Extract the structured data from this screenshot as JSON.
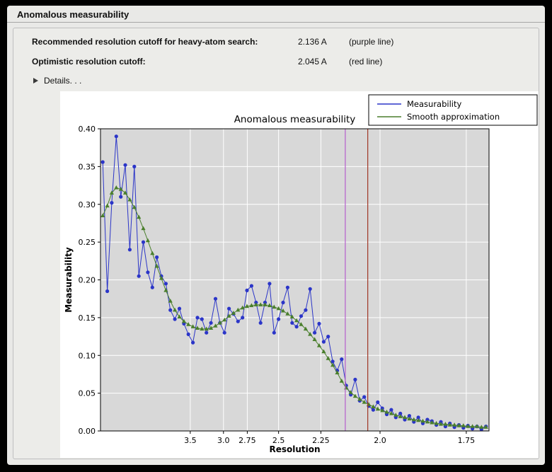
{
  "header": {
    "title": "Anomalous measurability"
  },
  "info": {
    "rows": [
      {
        "label": "Recommended resolution cutoff for heavy-atom search:",
        "value": "2.136 A",
        "note": "(purple line)"
      },
      {
        "label": "Optimistic resolution cutoff:",
        "value": "2.045 A",
        "note": "(red line)"
      }
    ]
  },
  "details": {
    "label": "Details. . .",
    "icon": "right-pointing-disclosure-triangle"
  },
  "chart_data": {
    "type": "line",
    "title": "Anomalous measurability",
    "xlabel": "Resolution",
    "ylabel": "Measurability",
    "x_scale_note": "x axis linear in 1/d^2; resolution in Angstrom decreases to the right",
    "x_domain_inv_d2": [
      0.002,
      0.3467
    ],
    "ylim": [
      0.0,
      0.4
    ],
    "y_ticks": [
      0.0,
      0.05,
      0.1,
      0.15,
      0.2,
      0.25,
      0.3,
      0.35,
      0.4
    ],
    "x_ticks": [
      {
        "label": "3.5",
        "d": 3.5
      },
      {
        "label": "3.0",
        "d": 3.0
      },
      {
        "label": "2.75",
        "d": 2.75
      },
      {
        "label": "2.5",
        "d": 2.5
      },
      {
        "label": "2.25",
        "d": 2.25
      },
      {
        "label": "2.0",
        "d": 2.0
      },
      {
        "label": "1.75",
        "d": 1.75
      }
    ],
    "grid": true,
    "plot_bg": "#d8d8d8",
    "grid_color": "#ffffff",
    "legend": {
      "position": "top-right",
      "entries": [
        {
          "label": "Measurability",
          "color": "#2b35c8"
        },
        {
          "label": "Smooth approximation",
          "color": "#4a7f2c"
        }
      ]
    },
    "vlines": [
      {
        "resolution": 2.136,
        "color": "#b55ecc",
        "meaning": "recommended cutoff (purple line)"
      },
      {
        "resolution": 2.045,
        "color": "#a03525",
        "meaning": "optimistic cutoff (red line)"
      }
    ],
    "x_inv_d2": [
      0.004,
      0.008,
      0.012,
      0.016,
      0.02,
      0.024,
      0.028,
      0.032,
      0.036,
      0.04,
      0.044,
      0.048,
      0.052,
      0.056,
      0.06,
      0.064,
      0.068,
      0.072,
      0.076,
      0.08,
      0.084,
      0.088,
      0.092,
      0.096,
      0.1,
      0.104,
      0.108,
      0.112,
      0.116,
      0.12,
      0.124,
      0.128,
      0.132,
      0.136,
      0.14,
      0.144,
      0.148,
      0.152,
      0.156,
      0.16,
      0.164,
      0.168,
      0.172,
      0.176,
      0.18,
      0.184,
      0.188,
      0.192,
      0.196,
      0.2,
      0.204,
      0.208,
      0.212,
      0.216,
      0.22,
      0.224,
      0.228,
      0.232,
      0.236,
      0.24,
      0.244,
      0.248,
      0.252,
      0.256,
      0.26,
      0.264,
      0.268,
      0.272,
      0.276,
      0.28,
      0.284,
      0.288,
      0.292,
      0.296,
      0.3,
      0.304,
      0.308,
      0.312,
      0.316,
      0.32,
      0.324,
      0.328,
      0.332,
      0.336,
      0.34,
      0.344
    ],
    "series": [
      {
        "name": "Measurability",
        "color": "#2b35c8",
        "marker": "circle",
        "y": [
          0.356,
          0.185,
          0.302,
          0.39,
          0.31,
          0.352,
          0.24,
          0.35,
          0.205,
          0.25,
          0.21,
          0.19,
          0.23,
          0.205,
          0.195,
          0.16,
          0.148,
          0.162,
          0.142,
          0.128,
          0.117,
          0.15,
          0.148,
          0.13,
          0.143,
          0.175,
          0.143,
          0.13,
          0.162,
          0.155,
          0.145,
          0.15,
          0.186,
          0.192,
          0.17,
          0.143,
          0.17,
          0.195,
          0.13,
          0.148,
          0.17,
          0.19,
          0.143,
          0.138,
          0.152,
          0.16,
          0.188,
          0.13,
          0.142,
          0.118,
          0.125,
          0.092,
          0.08,
          0.095,
          0.06,
          0.048,
          0.068,
          0.04,
          0.045,
          0.033,
          0.028,
          0.038,
          0.03,
          0.022,
          0.028,
          0.018,
          0.023,
          0.015,
          0.02,
          0.012,
          0.018,
          0.01,
          0.015,
          0.013,
          0.008,
          0.012,
          0.006,
          0.01,
          0.005,
          0.008,
          0.004,
          0.007,
          0.003,
          0.006,
          0.002,
          0.006
        ]
      },
      {
        "name": "Smooth approximation",
        "color": "#4a7f2c",
        "marker": "triangle",
        "y": [
          0.285,
          0.298,
          0.315,
          0.322,
          0.32,
          0.315,
          0.306,
          0.296,
          0.283,
          0.268,
          0.252,
          0.235,
          0.218,
          0.202,
          0.186,
          0.172,
          0.16,
          0.151,
          0.145,
          0.141,
          0.138,
          0.136,
          0.135,
          0.135,
          0.136,
          0.139,
          0.143,
          0.147,
          0.152,
          0.156,
          0.16,
          0.163,
          0.165,
          0.166,
          0.167,
          0.167,
          0.167,
          0.166,
          0.164,
          0.162,
          0.159,
          0.155,
          0.151,
          0.146,
          0.141,
          0.135,
          0.128,
          0.121,
          0.113,
          0.105,
          0.096,
          0.087,
          0.077,
          0.066,
          0.057,
          0.051,
          0.046,
          0.042,
          0.038,
          0.035,
          0.032,
          0.029,
          0.027,
          0.025,
          0.023,
          0.021,
          0.019,
          0.018,
          0.016,
          0.015,
          0.014,
          0.013,
          0.012,
          0.011,
          0.01,
          0.009,
          0.009,
          0.008,
          0.008,
          0.007,
          0.007,
          0.006,
          0.006,
          0.006,
          0.005,
          0.005
        ]
      }
    ]
  }
}
